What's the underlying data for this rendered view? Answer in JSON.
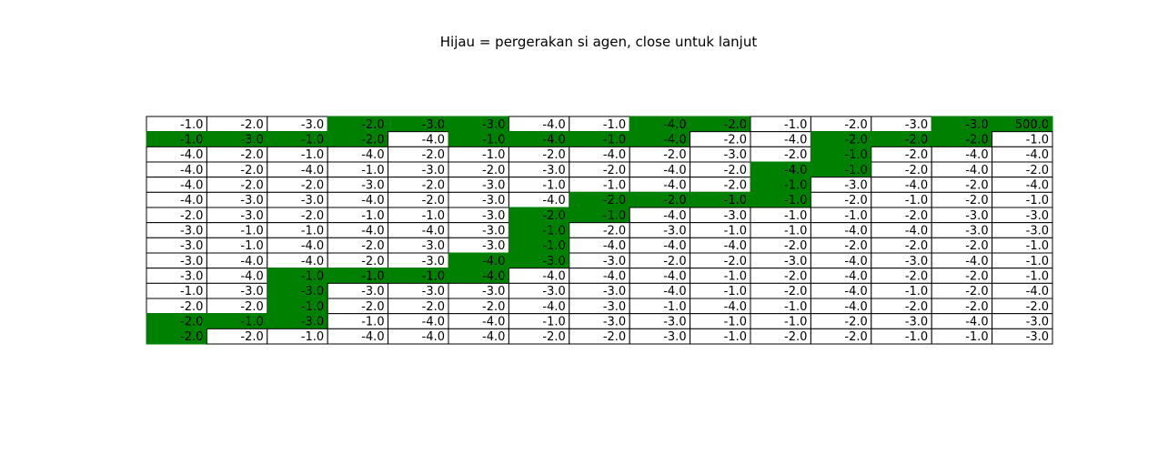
{
  "chart_data": {
    "type": "table",
    "title": "Hijau = pergerakan si agen, close untuk lanjut",
    "highlight_color": "#008000",
    "background_color": "#ffffff",
    "rows": [
      [
        "-1.0",
        "-2.0",
        "-3.0",
        "-2.0",
        "-3.0",
        "-3.0",
        "-4.0",
        "-1.0",
        "-4.0",
        "-2.0",
        "-1.0",
        "-2.0",
        "-3.0",
        "-3.0",
        "500.0"
      ],
      [
        "-1.0",
        "-3.0",
        "-1.0",
        "-2.0",
        "-4.0",
        "-1.0",
        "-4.0",
        "-1.0",
        "-4.0",
        "-2.0",
        "-4.0",
        "-2.0",
        "-2.0",
        "-2.0",
        "-1.0"
      ],
      [
        "-4.0",
        "-2.0",
        "-1.0",
        "-4.0",
        "-2.0",
        "-1.0",
        "-2.0",
        "-4.0",
        "-2.0",
        "-3.0",
        "-2.0",
        "-1.0",
        "-2.0",
        "-4.0",
        "-4.0"
      ],
      [
        "-4.0",
        "-2.0",
        "-4.0",
        "-1.0",
        "-3.0",
        "-2.0",
        "-3.0",
        "-2.0",
        "-4.0",
        "-2.0",
        "-4.0",
        "-1.0",
        "-2.0",
        "-4.0",
        "-2.0"
      ],
      [
        "-4.0",
        "-2.0",
        "-2.0",
        "-3.0",
        "-2.0",
        "-3.0",
        "-1.0",
        "-1.0",
        "-4.0",
        "-2.0",
        "-1.0",
        "-3.0",
        "-4.0",
        "-2.0",
        "-4.0"
      ],
      [
        "-4.0",
        "-3.0",
        "-3.0",
        "-4.0",
        "-2.0",
        "-3.0",
        "-4.0",
        "-2.0",
        "-2.0",
        "-1.0",
        "-1.0",
        "-2.0",
        "-1.0",
        "-2.0",
        "-1.0"
      ],
      [
        "-2.0",
        "-3.0",
        "-2.0",
        "-1.0",
        "-1.0",
        "-3.0",
        "-2.0",
        "-1.0",
        "-4.0",
        "-3.0",
        "-1.0",
        "-1.0",
        "-2.0",
        "-3.0",
        "-3.0"
      ],
      [
        "-3.0",
        "-1.0",
        "-1.0",
        "-4.0",
        "-4.0",
        "-3.0",
        "-1.0",
        "-2.0",
        "-3.0",
        "-1.0",
        "-1.0",
        "-4.0",
        "-4.0",
        "-3.0",
        "-3.0"
      ],
      [
        "-3.0",
        "-1.0",
        "-4.0",
        "-2.0",
        "-3.0",
        "-3.0",
        "-1.0",
        "-4.0",
        "-4.0",
        "-4.0",
        "-2.0",
        "-2.0",
        "-2.0",
        "-2.0",
        "-1.0"
      ],
      [
        "-3.0",
        "-4.0",
        "-4.0",
        "-2.0",
        "-3.0",
        "-4.0",
        "-3.0",
        "-3.0",
        "-2.0",
        "-2.0",
        "-3.0",
        "-4.0",
        "-3.0",
        "-4.0",
        "-1.0"
      ],
      [
        "-3.0",
        "-4.0",
        "-1.0",
        "-1.0",
        "-1.0",
        "-4.0",
        "-4.0",
        "-4.0",
        "-4.0",
        "-1.0",
        "-2.0",
        "-4.0",
        "-2.0",
        "-2.0",
        "-1.0"
      ],
      [
        "-1.0",
        "-3.0",
        "-3.0",
        "-3.0",
        "-3.0",
        "-3.0",
        "-3.0",
        "-3.0",
        "-4.0",
        "-1.0",
        "-2.0",
        "-4.0",
        "-1.0",
        "-2.0",
        "-4.0"
      ],
      [
        "-2.0",
        "-2.0",
        "-1.0",
        "-2.0",
        "-2.0",
        "-2.0",
        "-4.0",
        "-3.0",
        "-1.0",
        "-4.0",
        "-1.0",
        "-4.0",
        "-2.0",
        "-2.0",
        "-2.0"
      ],
      [
        "-2.0",
        "-1.0",
        "-3.0",
        "-1.0",
        "-4.0",
        "-4.0",
        "-1.0",
        "-3.0",
        "-3.0",
        "-1.0",
        "-1.0",
        "-2.0",
        "-3.0",
        "-4.0",
        "-3.0"
      ],
      [
        "-2.0",
        "-2.0",
        "-1.0",
        "-4.0",
        "-4.0",
        "-4.0",
        "-2.0",
        "-2.0",
        "-3.0",
        "-1.0",
        "-2.0",
        "-2.0",
        "-1.0",
        "-1.0",
        "-3.0"
      ]
    ],
    "highlighted": [
      [
        0,
        3
      ],
      [
        0,
        4
      ],
      [
        0,
        5
      ],
      [
        0,
        8
      ],
      [
        0,
        9
      ],
      [
        0,
        13
      ],
      [
        0,
        14
      ],
      [
        1,
        0
      ],
      [
        1,
        1
      ],
      [
        1,
        2
      ],
      [
        1,
        3
      ],
      [
        1,
        5
      ],
      [
        1,
        6
      ],
      [
        1,
        7
      ],
      [
        1,
        8
      ],
      [
        1,
        11
      ],
      [
        1,
        12
      ],
      [
        1,
        13
      ],
      [
        2,
        11
      ],
      [
        3,
        10
      ],
      [
        3,
        11
      ],
      [
        4,
        10
      ],
      [
        5,
        7
      ],
      [
        5,
        8
      ],
      [
        5,
        9
      ],
      [
        5,
        10
      ],
      [
        6,
        6
      ],
      [
        6,
        7
      ],
      [
        7,
        6
      ],
      [
        8,
        6
      ],
      [
        9,
        5
      ],
      [
        9,
        6
      ],
      [
        10,
        2
      ],
      [
        10,
        3
      ],
      [
        10,
        4
      ],
      [
        10,
        5
      ],
      [
        11,
        2
      ],
      [
        12,
        2
      ],
      [
        13,
        0
      ],
      [
        13,
        1
      ],
      [
        13,
        2
      ],
      [
        14,
        0
      ]
    ]
  }
}
